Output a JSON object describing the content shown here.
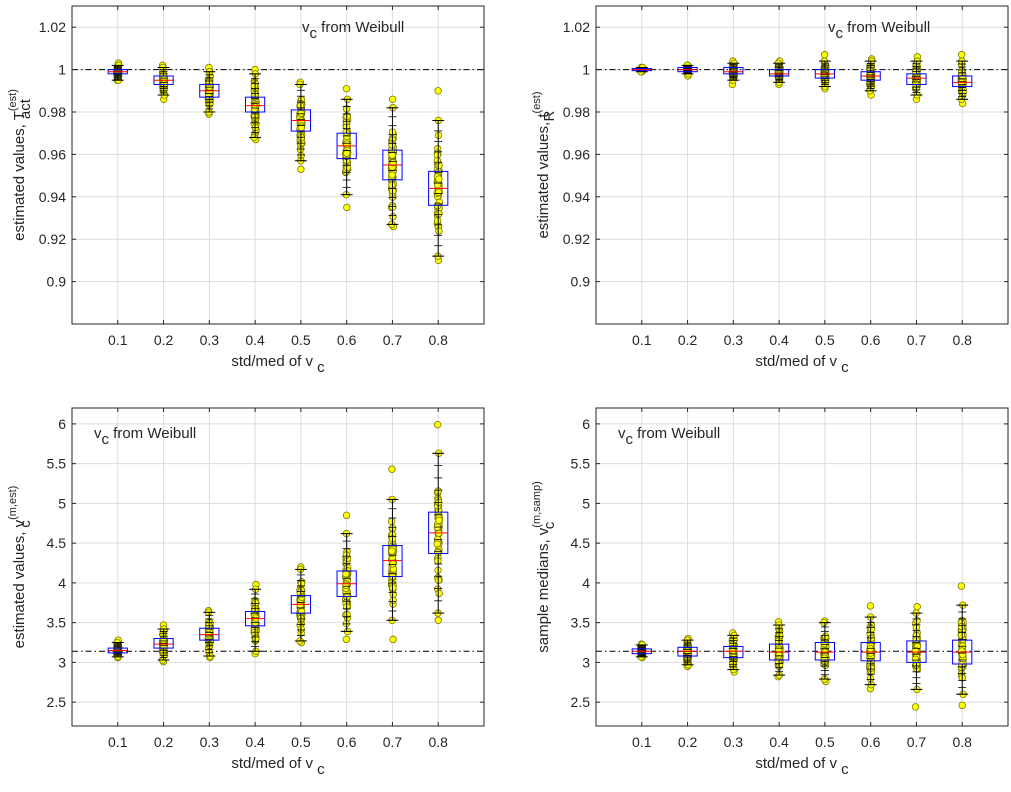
{
  "chart_data": [
    {
      "type": "box",
      "annotation": {
        "text": "v",
        "sub": "c",
        "rest": " from Weibull"
      },
      "xlabel": {
        "text": "std/med of v",
        "sub": "c"
      },
      "ylabel": {
        "text": "estimated values, T",
        "sub": "act",
        "sup": "(est)"
      },
      "categories": [
        "0.1",
        "0.2",
        "0.3",
        "0.4",
        "0.5",
        "0.6",
        "0.7",
        "0.8"
      ],
      "ylim": [
        0.88,
        1.03
      ],
      "yticks": [
        "0.9",
        "0.92",
        "0.94",
        "0.96",
        "0.98",
        "1",
        "1.02"
      ],
      "reference_line": 1.0,
      "grid": true,
      "boxes": [
        {
          "q1": 0.998,
          "median": 0.999,
          "q3": 1.0,
          "whisker_low": 0.995,
          "whisker_high": 1.002,
          "min": 0.995,
          "max": 1.003
        },
        {
          "q1": 0.993,
          "median": 0.995,
          "q3": 0.997,
          "whisker_low": 0.988,
          "whisker_high": 1.001,
          "min": 0.986,
          "max": 1.002
        },
        {
          "q1": 0.987,
          "median": 0.99,
          "q3": 0.993,
          "whisker_low": 0.98,
          "whisker_high": 0.999,
          "min": 0.979,
          "max": 1.001
        },
        {
          "q1": 0.98,
          "median": 0.983,
          "q3": 0.987,
          "whisker_low": 0.968,
          "whisker_high": 0.998,
          "min": 0.967,
          "max": 1.0
        },
        {
          "q1": 0.971,
          "median": 0.976,
          "q3": 0.981,
          "whisker_low": 0.957,
          "whisker_high": 0.993,
          "min": 0.953,
          "max": 0.994
        },
        {
          "q1": 0.958,
          "median": 0.964,
          "q3": 0.97,
          "whisker_low": 0.941,
          "whisker_high": 0.986,
          "min": 0.935,
          "max": 0.991
        },
        {
          "q1": 0.948,
          "median": 0.955,
          "q3": 0.962,
          "whisker_low": 0.927,
          "whisker_high": 0.982,
          "min": 0.926,
          "max": 0.986
        },
        {
          "q1": 0.936,
          "median": 0.944,
          "q3": 0.952,
          "whisker_low": 0.912,
          "whisker_high": 0.976,
          "min": 0.91,
          "max": 0.99
        }
      ]
    },
    {
      "type": "box",
      "annotation": {
        "text": "v",
        "sub": "c",
        "rest": " from Weibull"
      },
      "xlabel": {
        "text": "std/med of v",
        "sub": "c"
      },
      "ylabel": {
        "text": "estimated values, t",
        "sub": "R",
        "sup": "(est)"
      },
      "categories": [
        "0.1",
        "0.2",
        "0.3",
        "0.4",
        "0.5",
        "0.6",
        "0.7",
        "0.8"
      ],
      "ylim": [
        0.88,
        1.03
      ],
      "yticks": [
        "0.9",
        "0.92",
        "0.94",
        "0.96",
        "0.98",
        "1",
        "1.02"
      ],
      "reference_line": 1.0,
      "grid": true,
      "boxes": [
        {
          "q1": 0.9995,
          "median": 1.0,
          "q3": 1.0005,
          "whisker_low": 0.999,
          "whisker_high": 1.001,
          "min": 0.999,
          "max": 1.001
        },
        {
          "q1": 0.999,
          "median": 1.0,
          "q3": 1.001,
          "whisker_low": 0.998,
          "whisker_high": 1.002,
          "min": 0.997,
          "max": 1.002
        },
        {
          "q1": 0.998,
          "median": 0.999,
          "q3": 1.001,
          "whisker_low": 0.995,
          "whisker_high": 1.003,
          "min": 0.993,
          "max": 1.004
        },
        {
          "q1": 0.997,
          "median": 0.998,
          "q3": 1.0,
          "whisker_low": 0.994,
          "whisker_high": 1.003,
          "min": 0.993,
          "max": 1.004
        },
        {
          "q1": 0.996,
          "median": 0.998,
          "q3": 1.0,
          "whisker_low": 0.992,
          "whisker_high": 1.004,
          "min": 0.991,
          "max": 1.007
        },
        {
          "q1": 0.995,
          "median": 0.997,
          "q3": 0.999,
          "whisker_low": 0.99,
          "whisker_high": 1.004,
          "min": 0.988,
          "max": 1.005
        },
        {
          "q1": 0.993,
          "median": 0.996,
          "q3": 0.998,
          "whisker_low": 0.988,
          "whisker_high": 1.004,
          "min": 0.986,
          "max": 1.006
        },
        {
          "q1": 0.992,
          "median": 0.994,
          "q3": 0.997,
          "whisker_low": 0.986,
          "whisker_high": 1.004,
          "min": 0.984,
          "max": 1.007
        }
      ]
    },
    {
      "type": "box",
      "annotation": {
        "text": "v",
        "sub": "c",
        "rest": " from Weibull"
      },
      "xlabel": {
        "text": "std/med of v",
        "sub": "c"
      },
      "ylabel": {
        "text": "estimated values, v",
        "sub": "c",
        "sup": "(m,est)"
      },
      "categories": [
        "0.1",
        "0.2",
        "0.3",
        "0.4",
        "0.5",
        "0.6",
        "0.7",
        "0.8"
      ],
      "ylim": [
        2.2,
        6.2
      ],
      "yticks": [
        "2.5",
        "3",
        "3.5",
        "4",
        "4.5",
        "5",
        "5.5",
        "6"
      ],
      "reference_line": 3.14,
      "grid": true,
      "boxes": [
        {
          "q1": 3.12,
          "median": 3.15,
          "q3": 3.18,
          "whisker_low": 3.07,
          "whisker_high": 3.25,
          "min": 3.06,
          "max": 3.28
        },
        {
          "q1": 3.18,
          "median": 3.23,
          "q3": 3.3,
          "whisker_low": 3.03,
          "whisker_high": 3.42,
          "min": 3.01,
          "max": 3.47
        },
        {
          "q1": 3.28,
          "median": 3.35,
          "q3": 3.43,
          "whisker_low": 3.08,
          "whisker_high": 3.63,
          "min": 3.06,
          "max": 3.65
        },
        {
          "q1": 3.46,
          "median": 3.55,
          "q3": 3.64,
          "whisker_low": 3.14,
          "whisker_high": 3.92,
          "min": 3.11,
          "max": 3.98
        },
        {
          "q1": 3.62,
          "median": 3.73,
          "q3": 3.84,
          "whisker_low": 3.27,
          "whisker_high": 4.17,
          "min": 3.25,
          "max": 4.2
        },
        {
          "q1": 3.83,
          "median": 3.99,
          "q3": 4.15,
          "whisker_low": 3.39,
          "whisker_high": 4.62,
          "min": 3.29,
          "max": 4.85
        },
        {
          "q1": 4.08,
          "median": 4.28,
          "q3": 4.47,
          "whisker_low": 3.53,
          "whisker_high": 5.05,
          "min": 3.29,
          "max": 5.43
        },
        {
          "q1": 4.37,
          "median": 4.63,
          "q3": 4.89,
          "whisker_low": 3.62,
          "whisker_high": 5.63,
          "min": 3.53,
          "max": 5.99
        }
      ]
    },
    {
      "type": "box",
      "annotation": {
        "text": "v",
        "sub": "c",
        "rest": " from Weibull"
      },
      "xlabel": {
        "text": "std/med of v",
        "sub": "c"
      },
      "ylabel": {
        "text": "sample medians, v",
        "sub": "c",
        "sup": "(m,samp)"
      },
      "categories": [
        "0.1",
        "0.2",
        "0.3",
        "0.4",
        "0.5",
        "0.6",
        "0.7",
        "0.8"
      ],
      "ylim": [
        2.2,
        6.2
      ],
      "yticks": [
        "2.5",
        "3",
        "3.5",
        "4",
        "4.5",
        "5",
        "5.5",
        "6"
      ],
      "reference_line": 3.14,
      "grid": true,
      "boxes": [
        {
          "q1": 3.11,
          "median": 3.14,
          "q3": 3.17,
          "whisker_low": 3.07,
          "whisker_high": 3.22,
          "min": 3.06,
          "max": 3.23
        },
        {
          "q1": 3.08,
          "median": 3.14,
          "q3": 3.19,
          "whisker_low": 2.97,
          "whisker_high": 3.28,
          "min": 2.95,
          "max": 3.3
        },
        {
          "q1": 3.06,
          "median": 3.14,
          "q3": 3.2,
          "whisker_low": 2.91,
          "whisker_high": 3.34,
          "min": 2.88,
          "max": 3.37
        },
        {
          "q1": 3.03,
          "median": 3.13,
          "q3": 3.23,
          "whisker_low": 2.84,
          "whisker_high": 3.47,
          "min": 2.82,
          "max": 3.51
        },
        {
          "q1": 3.03,
          "median": 3.13,
          "q3": 3.25,
          "whisker_low": 2.79,
          "whisker_high": 3.5,
          "min": 2.76,
          "max": 3.52
        },
        {
          "q1": 3.02,
          "median": 3.13,
          "q3": 3.25,
          "whisker_low": 2.72,
          "whisker_high": 3.57,
          "min": 2.67,
          "max": 3.71
        },
        {
          "q1": 3.0,
          "median": 3.13,
          "q3": 3.27,
          "whisker_low": 2.66,
          "whisker_high": 3.62,
          "min": 2.44,
          "max": 3.7
        },
        {
          "q1": 2.98,
          "median": 3.13,
          "q3": 3.28,
          "whisker_low": 2.6,
          "whisker_high": 3.72,
          "min": 2.46,
          "max": 3.96
        }
      ]
    }
  ]
}
